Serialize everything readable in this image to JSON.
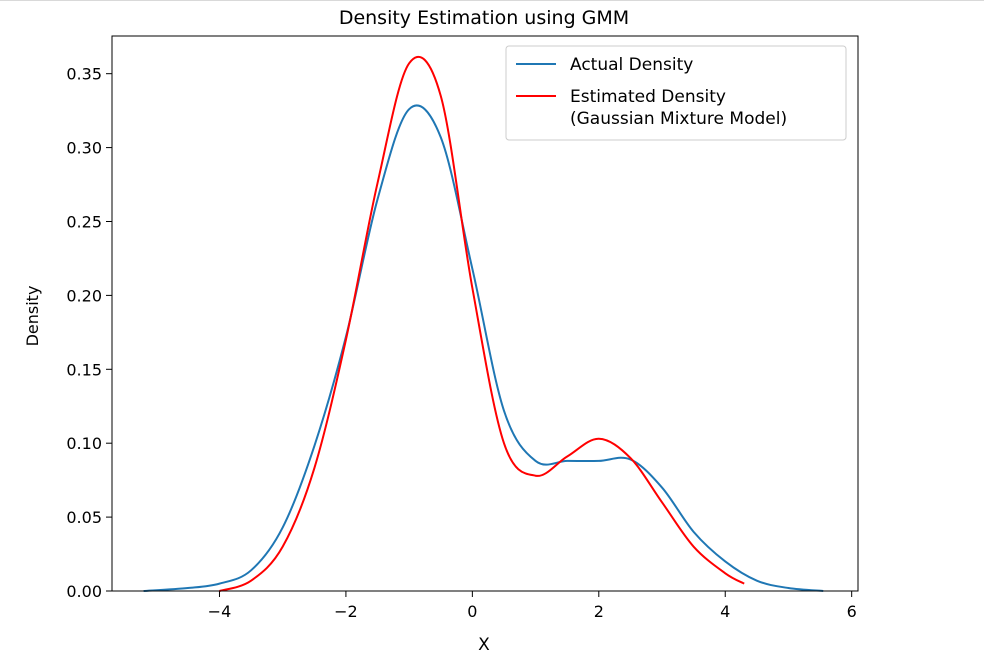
{
  "chart_data": {
    "type": "line",
    "title": "Density Estimation using GMM",
    "xlabel": "X",
    "ylabel": "Density",
    "xlim": [
      -5.7,
      6.1
    ],
    "ylim": [
      0,
      0.3755
    ],
    "xticks": [
      -4,
      -2,
      0,
      2,
      4,
      6
    ],
    "xtick_labels": [
      "−4",
      "−2",
      "0",
      "2",
      "4",
      "6"
    ],
    "yticks": [
      0.0,
      0.05,
      0.1,
      0.15,
      0.2,
      0.25,
      0.3,
      0.35
    ],
    "ytick_labels": [
      "0.00",
      "0.05",
      "0.10",
      "0.15",
      "0.20",
      "0.25",
      "0.30",
      "0.35"
    ],
    "grid": false,
    "legend_position": "top-right",
    "series": [
      {
        "name": "Actual Density",
        "color": "#1f77b4",
        "x": [
          -5.2,
          -4.5,
          -4.0,
          -3.5,
          -3.0,
          -2.5,
          -2.0,
          -1.5,
          -1.0,
          -0.5,
          0.0,
          0.5,
          1.0,
          1.5,
          2.0,
          2.5,
          3.0,
          3.5,
          4.0,
          4.5,
          5.0,
          5.55
        ],
        "y": [
          0.0,
          0.002,
          0.005,
          0.014,
          0.043,
          0.098,
          0.172,
          0.265,
          0.326,
          0.307,
          0.218,
          0.122,
          0.088,
          0.088,
          0.088,
          0.089,
          0.07,
          0.04,
          0.02,
          0.007,
          0.002,
          0.0
        ]
      },
      {
        "name": "Estimated Density\n(Gaussian Mixture Model)",
        "color": "#ff0000",
        "x": [
          -4.0,
          -3.5,
          -3.0,
          -2.5,
          -2.0,
          -1.5,
          -1.0,
          -0.5,
          0.0,
          0.5,
          1.0,
          1.5,
          2.0,
          2.5,
          3.0,
          3.5,
          4.0,
          4.3
        ],
        "y": [
          0.0,
          0.007,
          0.03,
          0.083,
          0.17,
          0.276,
          0.357,
          0.335,
          0.205,
          0.1,
          0.078,
          0.091,
          0.103,
          0.09,
          0.06,
          0.03,
          0.012,
          0.005
        ]
      }
    ]
  }
}
